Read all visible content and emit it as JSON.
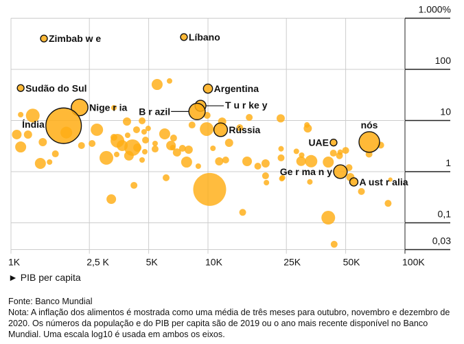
{
  "chart_data": {
    "type": "scatter",
    "subtype": "bubble",
    "x_scale": "log10",
    "y_scale": "log10",
    "xlim": [
      1,
      100
    ],
    "ylim": [
      0.03,
      1000
    ],
    "x_unit": "thousand USD",
    "xticks": [
      {
        "value": 1,
        "label": "1K"
      },
      {
        "value": 2.5,
        "label": "2,5 K"
      },
      {
        "value": 5,
        "label": "5K"
      },
      {
        "value": 10,
        "label": "10K"
      },
      {
        "value": 25,
        "label": "25K"
      },
      {
        "value": 50,
        "label": "50K"
      },
      {
        "value": 100,
        "label": "100K"
      }
    ],
    "yticks": [
      {
        "value": 1000,
        "label": "1.000%"
      },
      {
        "value": 100,
        "label": "100"
      },
      {
        "value": 10,
        "label": "10"
      },
      {
        "value": 1,
        "label": "1"
      },
      {
        "value": 0.1,
        "label": "0,1"
      },
      {
        "value": 0.03,
        "label": "0,03"
      }
    ],
    "xlabel": "► PIB per capita",
    "grid": true,
    "colors": {
      "bubble": "#ffad14",
      "highlight_stroke": "#111111",
      "grid": "#cccccc"
    },
    "labeled_points": [
      {
        "label": "Zimbab w e",
        "gdp": 1.47,
        "inflation": 400,
        "pop": 50,
        "anchor": "right"
      },
      {
        "label": "Líbano",
        "gdp": 7.55,
        "inflation": 427,
        "pop": 50,
        "anchor": "right"
      },
      {
        "label": "Sudão do Sul",
        "gdp": 1.12,
        "inflation": 43,
        "pop": 50,
        "anchor": "right"
      },
      {
        "label": "Argentina",
        "gdp": 10.0,
        "inflation": 42,
        "pop": 90,
        "anchor": "right"
      },
      {
        "label": "Nige r ia",
        "gdp": 2.23,
        "inflation": 18,
        "pop": 300,
        "anchor": "right"
      },
      {
        "label": "Índia",
        "gdp": 1.85,
        "inflation": 7.9,
        "pop": 1366,
        "anchor": "left-up"
      },
      {
        "label": "T u r ke y",
        "gdp": 9.16,
        "inflation": 19.4,
        "pop": 130,
        "anchor": "leader-right"
      },
      {
        "label": "B r azil",
        "gdp": 8.8,
        "inflation": 15,
        "pop": 290,
        "anchor": "leader-left"
      },
      {
        "label": "Rússia",
        "gdp": 11.6,
        "inflation": 6.6,
        "pop": 200,
        "anchor": "right"
      },
      {
        "label": "UAE",
        "gdp": 43.4,
        "inflation": 3.7,
        "pop": 50,
        "anchor": "left"
      },
      {
        "label": "nós",
        "gdp": 65.9,
        "inflation": 3.8,
        "pop": 460,
        "anchor": "top"
      },
      {
        "label": "Ge r ma n y",
        "gdp": 47.0,
        "inflation": 1.0,
        "pop": 200,
        "anchor": "left"
      },
      {
        "label": "A ust r alia",
        "gdp": 55.0,
        "inflation": 0.63,
        "pop": 73,
        "anchor": "right"
      }
    ],
    "points": [
      [
        10.2,
        0.45,
        1176
      ],
      [
        1.12,
        13.0,
        33
      ],
      [
        1.29,
        12.5,
        204
      ],
      [
        1.07,
        5.31,
        100
      ],
      [
        1.22,
        5.31,
        73
      ],
      [
        1.12,
        3.04,
        131
      ],
      [
        1.45,
        3.78,
        73
      ],
      [
        1.68,
        2.23,
        51
      ],
      [
        1.41,
        1.45,
        131
      ],
      [
        1.57,
        1.54,
        33
      ],
      [
        1.91,
        5.8,
        150
      ],
      [
        2.73,
        6.6,
        165
      ],
      [
        2.28,
        3.24,
        51
      ],
      [
        2.58,
        3.55,
        51
      ],
      [
        3.88,
        9.55,
        73
      ],
      [
        4.63,
        9.84,
        51
      ],
      [
        4.34,
        6.6,
        51
      ],
      [
        4.74,
        6.0,
        33
      ],
      [
        4.97,
        7.0,
        33
      ],
      [
        3.33,
        4.69,
        51
      ],
      [
        3.91,
        5.15,
        33
      ],
      [
        3.47,
        4.02,
        204
      ],
      [
        3.67,
        3.24,
        131
      ],
      [
        4.14,
        2.95,
        294
      ],
      [
        4.38,
        2.95,
        73
      ],
      [
        4.82,
        4.14,
        51
      ],
      [
        4.78,
        2.45,
        33
      ],
      [
        3.97,
        2.04,
        100
      ],
      [
        3.05,
        1.86,
        204
      ],
      [
        3.44,
        2.17,
        33
      ],
      [
        4.63,
        1.69,
        33
      ],
      [
        6.03,
        5.47,
        131
      ],
      [
        6.69,
        4.54,
        51
      ],
      [
        6.49,
        3.24,
        100
      ],
      [
        6.63,
        2.95,
        33
      ],
      [
        5.39,
        3.55,
        33
      ],
      [
        5.39,
        2.77,
        51
      ],
      [
        6.96,
        2.37,
        73
      ],
      [
        7.42,
        2.86,
        51
      ],
      [
        7.79,
        1.54,
        131
      ],
      [
        8.93,
        1.28,
        33
      ],
      [
        8.3,
        8.17,
        51
      ],
      [
        9.85,
        6.8,
        204
      ],
      [
        9.9,
        12.6,
        51
      ],
      [
        7.98,
        2.69,
        73
      ],
      [
        10.6,
        2.86,
        33
      ],
      [
        11.4,
        1.59,
        73
      ],
      [
        12.3,
        1.69,
        51
      ],
      [
        12.8,
        3.66,
        73
      ],
      [
        16.2,
        11.5,
        51
      ],
      [
        14.5,
        7.23,
        51
      ],
      [
        15.8,
        1.59,
        100
      ],
      [
        17.9,
        1.28,
        51
      ],
      [
        19.6,
        1.45,
        73
      ],
      [
        19.6,
        0.83,
        51
      ],
      [
        19.8,
        0.61,
        33
      ],
      [
        23.9,
        0.76,
        33
      ],
      [
        6.13,
        0.76,
        51
      ],
      [
        4.21,
        0.54,
        51
      ],
      [
        3.23,
        0.29,
        100
      ],
      [
        15.0,
        0.16,
        51
      ],
      [
        5.52,
        50.6,
        131
      ],
      [
        6.38,
        59.3,
        33
      ],
      [
        3.33,
        17.7,
        33
      ],
      [
        23.4,
        11.0,
        73
      ],
      [
        32.1,
        7.0,
        73
      ],
      [
        31.8,
        8.2,
        33
      ],
      [
        23.5,
        2.8,
        33
      ],
      [
        28.1,
        2.5,
        33
      ],
      [
        29.9,
        2.1,
        33
      ],
      [
        23.5,
        1.86,
        51
      ],
      [
        29.7,
        1.6,
        100
      ],
      [
        33.4,
        1.6,
        165
      ],
      [
        40.8,
        1.54,
        131
      ],
      [
        43.3,
        2.3,
        51
      ],
      [
        46.9,
        2.4,
        33
      ],
      [
        50.0,
        2.6,
        51
      ],
      [
        46.5,
        2.05,
        51
      ],
      [
        52.0,
        1.2,
        51
      ],
      [
        52.8,
        0.78,
        73
      ],
      [
        60.1,
        0.41,
        51
      ],
      [
        75.3,
        3.3,
        51
      ],
      [
        82.1,
        0.24,
        51
      ],
      [
        40.8,
        0.126,
        204
      ],
      [
        43.7,
        0.038,
        51
      ],
      [
        84.3,
        0.7,
        20
      ],
      [
        32.9,
        0.63,
        33
      ],
      [
        65.7,
        2.2,
        51
      ],
      [
        23.7,
        0.73,
        33
      ],
      [
        11.8,
        9.5,
        73
      ]
    ]
  },
  "footnote": {
    "source": "Fonte: Banco Mundial",
    "note": "Nota: A inflação dos alimentos é mostrada como uma média de três meses para outubro, novembro e dezembro de 2020. Os números da população e do PIB per capita são de 2019 ou o ano mais recente disponível no Banco Mundial. Uma escala log10 é usada em ambos os eixos."
  }
}
